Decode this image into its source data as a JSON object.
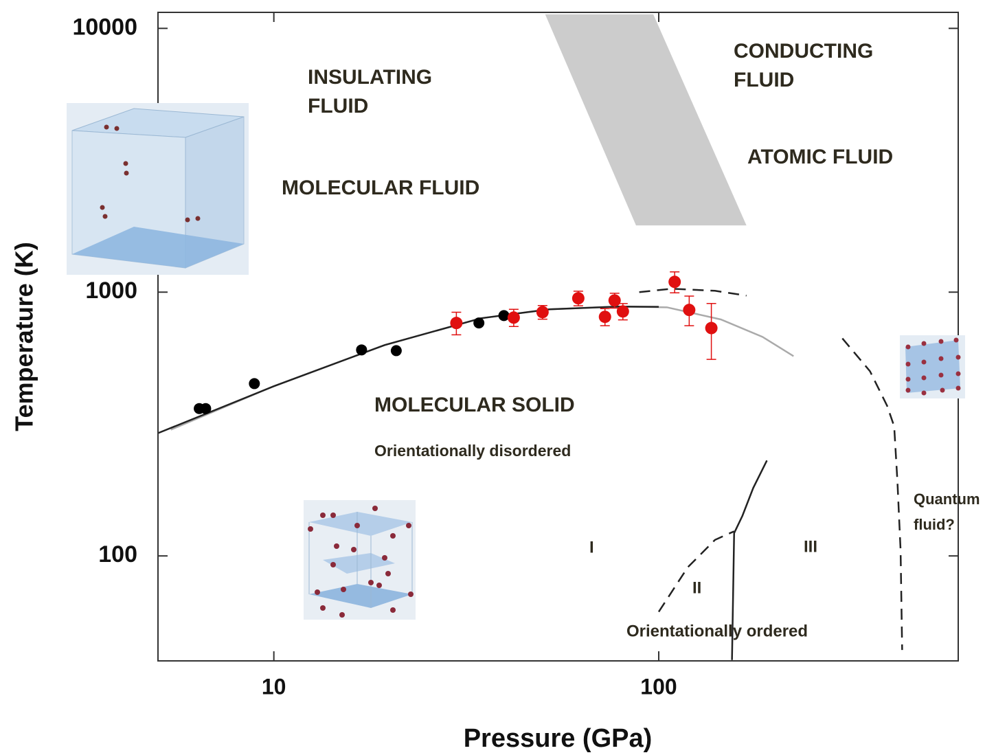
{
  "chart_data": {
    "type": "scatter",
    "x_label": "Pressure (GPa)",
    "y_label": "Temperature (K)",
    "xscale": "log",
    "yscale": "log",
    "xlim": [
      5,
      600
    ],
    "ylim": [
      40,
      11500
    ],
    "xticks": [
      10,
      100
    ],
    "yticks": [
      100,
      1000,
      10000
    ],
    "series": [
      {
        "kind": "area",
        "color": "#cccccc",
        "x": [
          50.7,
          96.8,
          169,
          87.3
        ],
        "values": [
          11300,
          11300,
          1791,
          1791
        ]
      },
      {
        "kind": "line",
        "color": "#aaaaaa",
        "dash": false,
        "x": [
          5.4,
          10,
          19.4,
          34.5,
          52,
          78.5,
          105,
          145,
          186,
          224
        ],
        "values": [
          301,
          440,
          630,
          796,
          861,
          882,
          876,
          788,
          677,
          572
        ]
      },
      {
        "kind": "line",
        "color": "#222222",
        "dash": false,
        "x": [
          5,
          10,
          19.4,
          34.5,
          52,
          78.5,
          100
        ],
        "values": [
          292,
          440,
          630,
          796,
          861,
          882,
          880
        ]
      },
      {
        "kind": "line",
        "color": "#222222",
        "dash": true,
        "x": [
          89,
          108,
          140,
          169
        ],
        "values": [
          1000,
          1030,
          1012,
          970
        ]
      },
      {
        "kind": "line",
        "color": "#222222",
        "dash": true,
        "x": [
          300,
          354,
          392,
          409,
          417,
          425,
          429
        ],
        "values": [
          668,
          501,
          371,
          310,
          192,
          105,
          44
        ]
      },
      {
        "kind": "line",
        "color": "#222222",
        "dash": false,
        "x": [
          191,
          176,
          165,
          157,
          155
        ],
        "values": [
          230,
          181,
          142,
          122,
          40.3
        ]
      },
      {
        "kind": "line",
        "color": "#222222",
        "dash": true,
        "x": [
          100,
          119,
          140,
          157
        ],
        "values": [
          61.4,
          90.6,
          115,
          124
        ]
      },
      {
        "kind": "points",
        "color": "#000000",
        "x": [
          6.4,
          6.65,
          8.9,
          16.9,
          20.8,
          34.1,
          39.6
        ],
        "values": [
          362,
          362,
          450,
          604,
          600,
          764,
          815
        ]
      },
      {
        "kind": "points",
        "color": "#e01010",
        "x": [
          29.8,
          42,
          49.9,
          61.8,
          72.5,
          76.8,
          80.7,
          110,
          120,
          137
        ],
        "values": [
          764,
          801,
          840,
          948,
          806,
          930,
          845,
          1094,
          856,
          731
        ],
        "errors": [
          75,
          60,
          50,
          60,
          60,
          60,
          60,
          100,
          110,
          175
        ]
      }
    ],
    "annotations": [
      "INSULATING",
      "FLUID",
      "CONDUCTING",
      "FLUID",
      "ATOMIC FLUID",
      "MOLECULAR FLUID",
      "MOLECULAR SOLID",
      "Orientationally disordered",
      "I",
      "II",
      "III",
      "Orientationally ordered",
      "Quantum",
      "fluid?"
    ]
  }
}
